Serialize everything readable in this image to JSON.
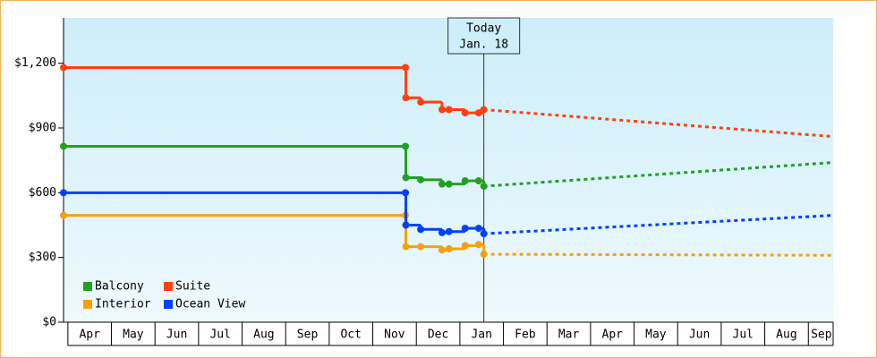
{
  "chart_data": {
    "type": "step-line",
    "ylim": [
      0,
      1410
    ],
    "yticks": [
      {
        "value": 0,
        "label": "$0"
      },
      {
        "value": 300,
        "label": "$300"
      },
      {
        "value": 600,
        "label": "$600"
      },
      {
        "value": 900,
        "label": "$900"
      },
      {
        "value": 1200,
        "label": "$1,200"
      }
    ],
    "xlim": [
      -0.1,
      17.57
    ],
    "xticks": [
      {
        "value": 0.5,
        "label": "Apr"
      },
      {
        "value": 1.5,
        "label": "May"
      },
      {
        "value": 2.5,
        "label": "Jun"
      },
      {
        "value": 3.5,
        "label": "Jul"
      },
      {
        "value": 4.5,
        "label": "Aug"
      },
      {
        "value": 5.5,
        "label": "Sep"
      },
      {
        "value": 6.5,
        "label": "Oct"
      },
      {
        "value": 7.5,
        "label": "Nov"
      },
      {
        "value": 8.5,
        "label": "Dec"
      },
      {
        "value": 9.5,
        "label": "Jan"
      },
      {
        "value": 10.5,
        "label": "Feb"
      },
      {
        "value": 11.5,
        "label": "Mar"
      },
      {
        "value": 12.5,
        "label": "Apr"
      },
      {
        "value": 13.5,
        "label": "May"
      },
      {
        "value": 14.5,
        "label": "Jun"
      },
      {
        "value": 15.5,
        "label": "Jul"
      },
      {
        "value": 16.5,
        "label": "Aug"
      },
      {
        "value": 17.3,
        "label": "Sep"
      }
    ],
    "annotation": {
      "x": 9.55,
      "label": "Today",
      "date": "Jan. 18"
    },
    "series": [
      {
        "name": "Balcony",
        "color": "#22a022",
        "x": [
          -0.1,
          7.75,
          7.76,
          8.1,
          8.59,
          8.75,
          9.12,
          9.43,
          9.55
        ],
        "values": [
          815,
          815,
          670,
          660,
          640,
          640,
          655,
          655,
          630
        ],
        "forecast": {
          "x": [
            9.55,
            17.57
          ],
          "values": [
            630,
            740
          ]
        }
      },
      {
        "name": "Suite",
        "color": "#ff4010",
        "x": [
          -0.1,
          7.75,
          7.76,
          8.1,
          8.59,
          8.75,
          9.12,
          9.43,
          9.55
        ],
        "values": [
          1180,
          1180,
          1040,
          1020,
          985,
          985,
          970,
          970,
          985
        ],
        "forecast": {
          "x": [
            9.55,
            17.57
          ],
          "values": [
            985,
            860
          ]
        }
      },
      {
        "name": "Interior",
        "color": "#f5a010",
        "x": [
          -0.1,
          7.75,
          7.76,
          8.1,
          8.59,
          8.75,
          9.12,
          9.43,
          9.55
        ],
        "values": [
          495,
          495,
          350,
          350,
          335,
          340,
          355,
          360,
          315
        ],
        "forecast": {
          "x": [
            9.55,
            17.57
          ],
          "values": [
            315,
            310
          ]
        }
      },
      {
        "name": "Ocean View",
        "color": "#0040ff",
        "x": [
          -0.1,
          7.75,
          7.76,
          8.1,
          8.59,
          8.75,
          9.12,
          9.43,
          9.55
        ],
        "values": [
          600,
          600,
          450,
          430,
          415,
          420,
          435,
          435,
          410
        ],
        "forecast": {
          "x": [
            9.55,
            17.57
          ],
          "values": [
            410,
            495
          ]
        }
      }
    ]
  }
}
